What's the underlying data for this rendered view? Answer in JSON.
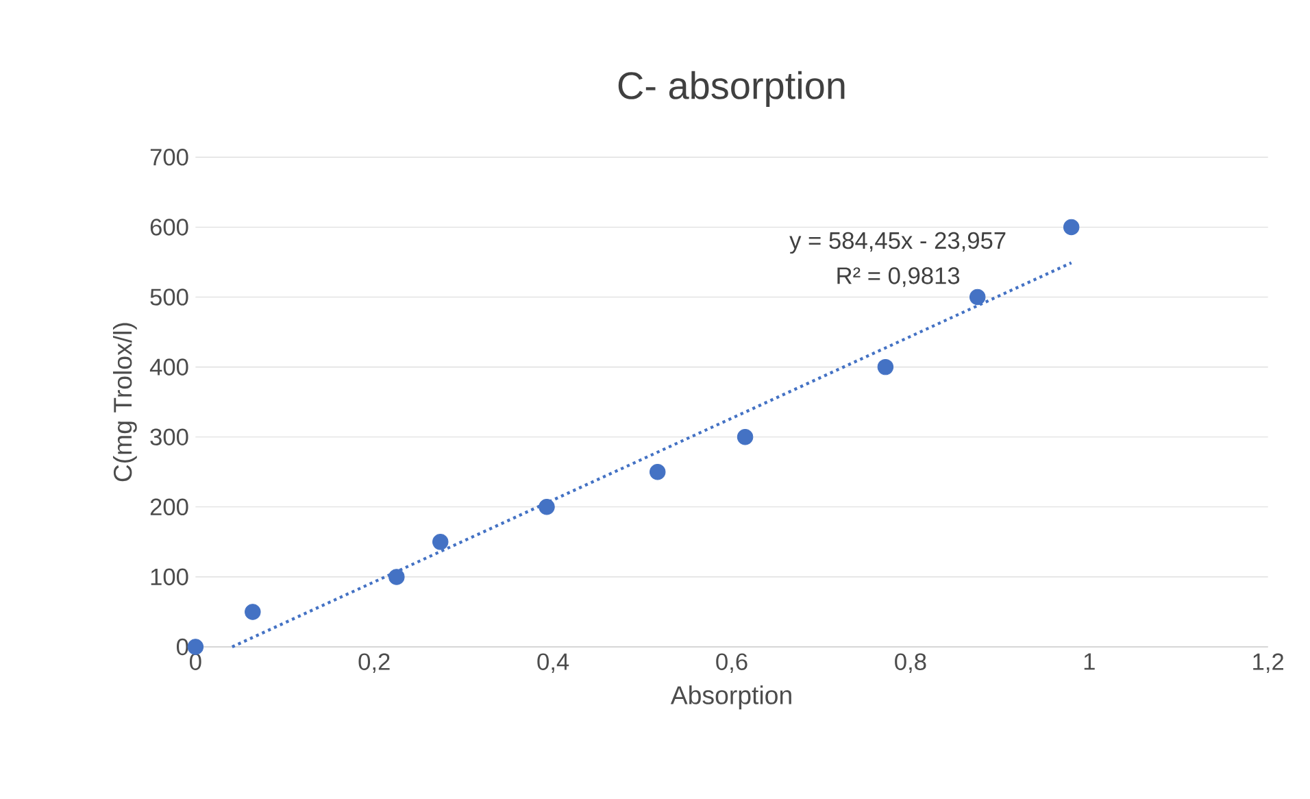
{
  "chart_data": {
    "type": "scatter",
    "title": "C- absorption",
    "xlabel": "Absorption",
    "ylabel": "C(mg Trolox/l)",
    "series": [
      {
        "color": "#4472c4",
        "marker": "circle",
        "x": [
          0,
          0.064,
          0.225,
          0.274,
          0.393,
          0.517,
          0.615,
          0.772,
          0.875,
          0.98
        ],
        "values": [
          0,
          50,
          100,
          150,
          200,
          250,
          300,
          400,
          500,
          600
        ]
      },
      {
        "type": "line",
        "color": "#4472c4",
        "marker": "none",
        "line_style": "dotted",
        "x": [
          0.041,
          0.98
        ],
        "values": [
          0,
          549
        ]
      }
    ],
    "annotations": [
      "y = 584,45x - 23,957",
      "R² = 0,9813"
    ],
    "xlim": [
      0,
      1.2
    ],
    "ylim": [
      0,
      700
    ],
    "xticks": [
      0,
      {
        "value": 0.2,
        "label": "0,2"
      },
      {
        "value": 0.4,
        "label": "0,4"
      },
      {
        "value": 0.6,
        "label": "0,6"
      },
      {
        "value": 0.8,
        "label": "0,8"
      },
      1,
      {
        "value": 1.2,
        "label": "1,2"
      }
    ],
    "yticks": [
      0,
      100,
      200,
      300,
      400,
      500,
      600,
      700
    ],
    "grid": "y"
  }
}
